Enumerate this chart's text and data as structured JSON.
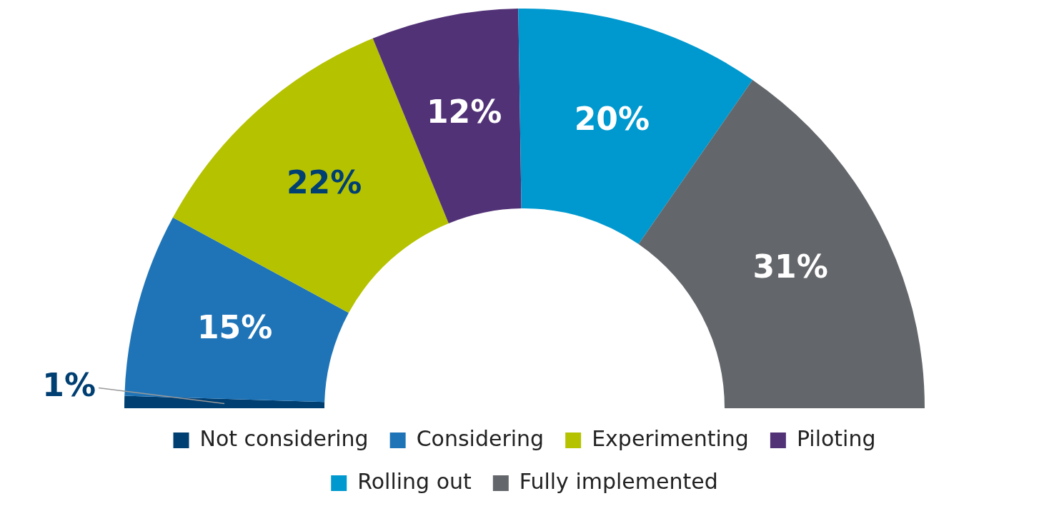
{
  "chart_data": {
    "type": "donut",
    "categories": [
      "Not considering",
      "Considering",
      "Experimenting",
      "Piloting",
      "Rolling out",
      "Fully implemented"
    ],
    "values": [
      1,
      15,
      22,
      12,
      20,
      31
    ],
    "colors": [
      "#003f72",
      "#1f74b7",
      "#b5c200",
      "#523277",
      "#0099cf",
      "#63666a"
    ],
    "value_labels": [
      "1%",
      "15%",
      "22%",
      "12%",
      "20%",
      "31%"
    ],
    "legend": "bottom"
  }
}
